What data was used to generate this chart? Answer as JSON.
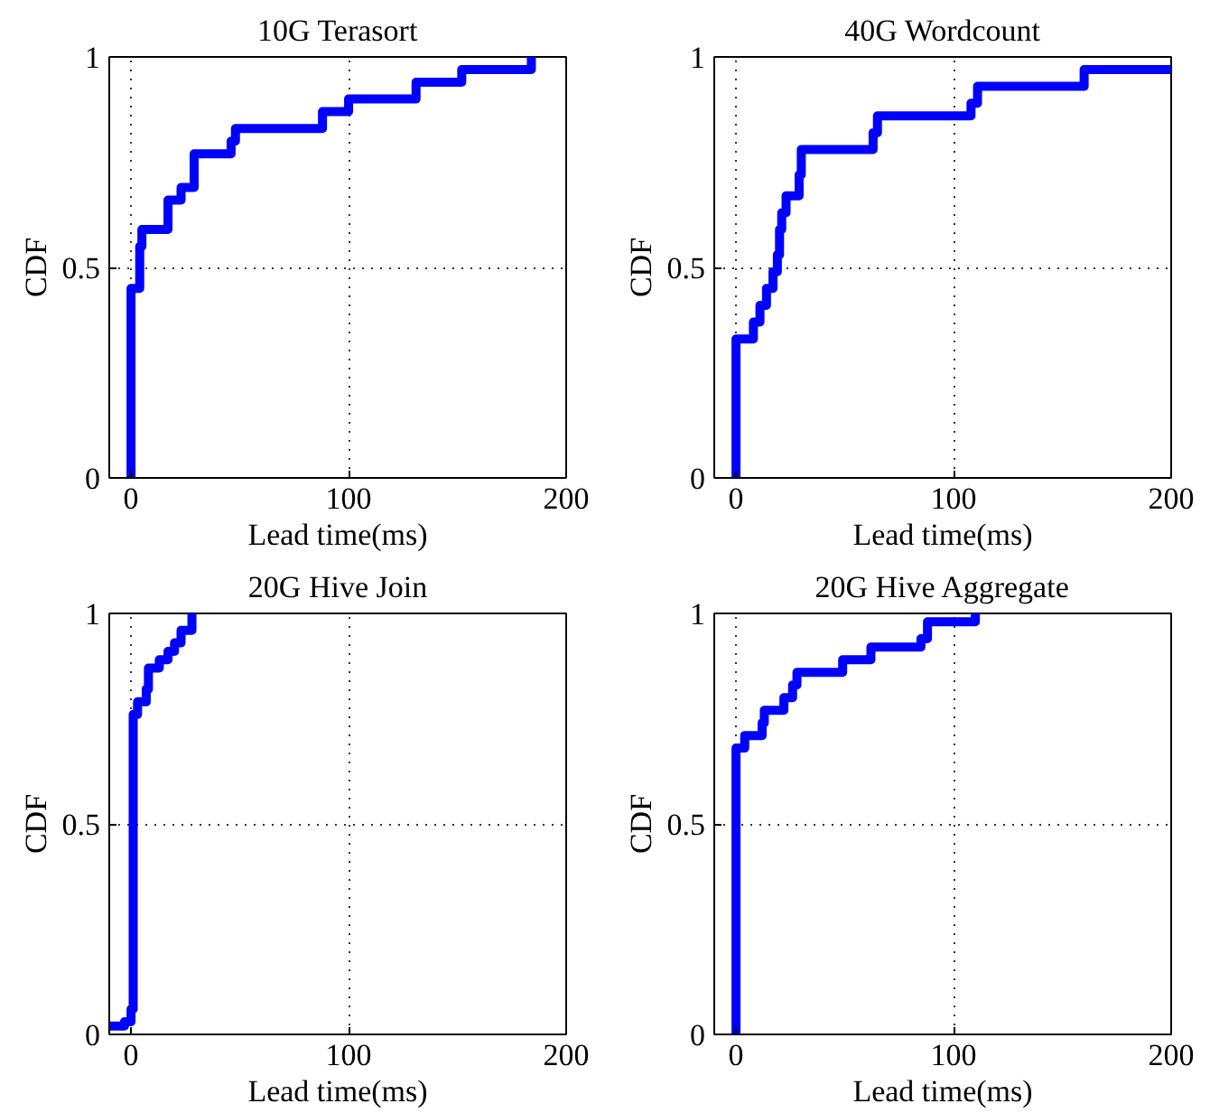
{
  "chart_data": [
    {
      "type": "step",
      "title": "10G Terasort",
      "xlabel": "Lead time(ms)",
      "ylabel": "CDF",
      "xlim": [
        -10,
        200
      ],
      "ylim": [
        0,
        1
      ],
      "xticks": [
        0,
        100,
        200
      ],
      "yticks": [
        0,
        0.5,
        1
      ],
      "grid": true,
      "line_style": "solid",
      "series": [
        {
          "color": "#0000ff",
          "x": [
            0,
            0,
            4,
            5,
            17,
            23,
            29,
            46,
            48,
            88,
            100,
            131,
            152,
            184
          ],
          "values": [
            0,
            0.45,
            0.55,
            0.59,
            0.66,
            0.69,
            0.77,
            0.8,
            0.83,
            0.87,
            0.9,
            0.94,
            0.97,
            1.0
          ]
        }
      ]
    },
    {
      "type": "step",
      "title": "40G Wordcount",
      "xlabel": "Lead time(ms)",
      "ylabel": "CDF",
      "xlim": [
        -10,
        200
      ],
      "ylim": [
        0,
        1
      ],
      "xticks": [
        0,
        100,
        200
      ],
      "yticks": [
        0,
        0.5,
        1
      ],
      "grid": true,
      "line_style": "solid",
      "series": [
        {
          "color": "#0000ff",
          "x": [
            0,
            0,
            8,
            11,
            14,
            17,
            19,
            20,
            21,
            23,
            29,
            30,
            63,
            65,
            108,
            111,
            160,
            200
          ],
          "values": [
            0,
            0.33,
            0.37,
            0.41,
            0.45,
            0.49,
            0.53,
            0.59,
            0.63,
            0.67,
            0.72,
            0.78,
            0.82,
            0.86,
            0.89,
            0.93,
            0.97,
            0.97
          ]
        }
      ]
    },
    {
      "type": "step",
      "title": "20G Hive Join",
      "xlabel": "Lead time(ms)",
      "ylabel": "CDF",
      "xlim": [
        -10,
        200
      ],
      "ylim": [
        0,
        1
      ],
      "xticks": [
        0,
        100,
        200
      ],
      "yticks": [
        0,
        0.5,
        1
      ],
      "grid": true,
      "line_style": "solid",
      "series": [
        {
          "color": "#0000ff",
          "x": [
            -10,
            -3,
            0,
            1,
            3,
            7,
            8,
            13,
            17,
            20,
            23,
            28
          ],
          "values": [
            0.02,
            0.03,
            0.06,
            0.76,
            0.79,
            0.82,
            0.87,
            0.89,
            0.91,
            0.93,
            0.96,
            1.0
          ]
        }
      ]
    },
    {
      "type": "step",
      "title": "20G Hive Aggregate",
      "xlabel": "Lead time(ms)",
      "ylabel": "CDF",
      "xlim": [
        -10,
        200
      ],
      "ylim": [
        0,
        1
      ],
      "xticks": [
        0,
        100,
        200
      ],
      "yticks": [
        0,
        0.5,
        1
      ],
      "grid": true,
      "line_style": "solid",
      "series": [
        {
          "color": "#0000ff",
          "x": [
            0,
            0,
            4,
            12,
            13,
            22,
            26,
            28,
            49,
            62,
            85,
            88,
            110
          ],
          "values": [
            0,
            0.68,
            0.71,
            0.74,
            0.77,
            0.8,
            0.83,
            0.86,
            0.89,
            0.92,
            0.94,
            0.98,
            1.0
          ]
        }
      ]
    }
  ]
}
